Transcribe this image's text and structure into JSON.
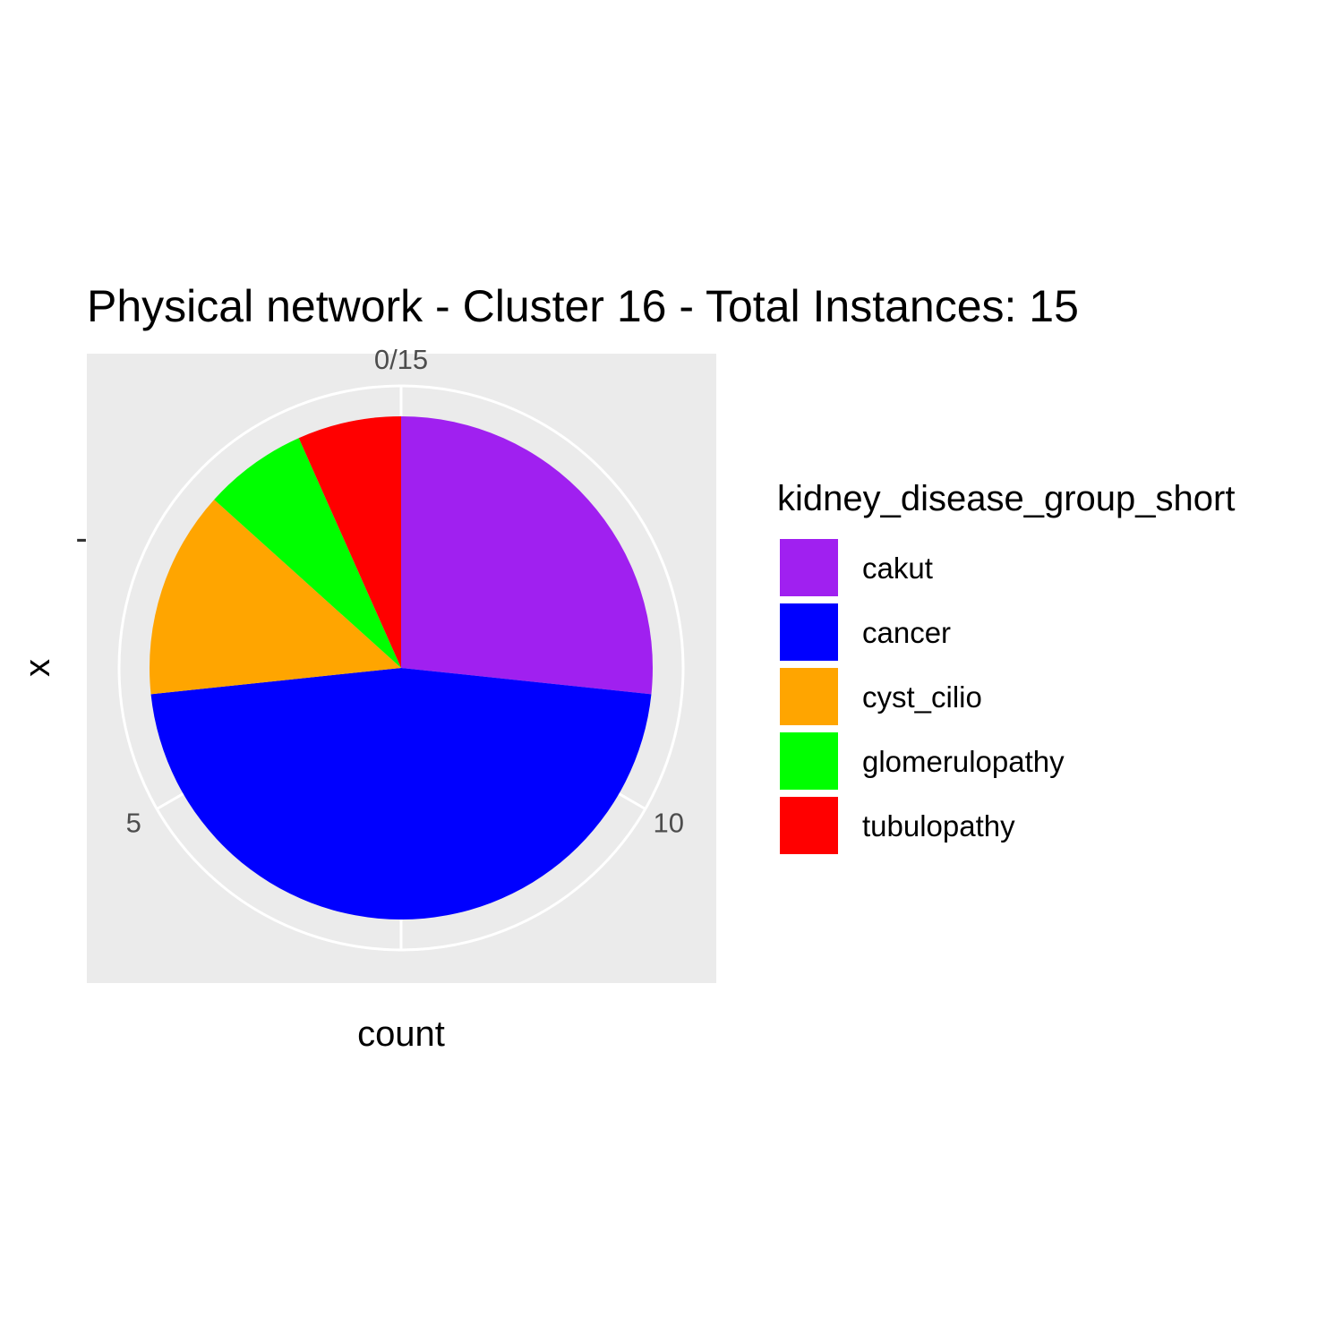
{
  "chart_data": {
    "type": "pie",
    "title": "Physical network - Cluster 16 - Total Instances: 15",
    "xlabel": "count",
    "ylabel": "x",
    "y_tick_label": "-",
    "total": 15,
    "theta_ticks": [
      {
        "value": 0,
        "label": "0/15"
      },
      {
        "value": 5,
        "label": "5"
      },
      {
        "value": 10,
        "label": "10"
      }
    ],
    "legend": {
      "title": "kidney_disease_group_short",
      "position": "right"
    },
    "slices": [
      {
        "label": "cakut",
        "value": 4,
        "color": "#A020F0"
      },
      {
        "label": "cancer",
        "value": 7,
        "color": "#0000FF"
      },
      {
        "label": "cyst_cilio",
        "value": 2,
        "color": "#FFA500"
      },
      {
        "label": "glomerulopathy",
        "value": 1,
        "color": "#00FF00"
      },
      {
        "label": "tubulopathy",
        "value": 1,
        "color": "#FF0000"
      }
    ],
    "grid": true,
    "panel_background": "#EBEBEB"
  }
}
